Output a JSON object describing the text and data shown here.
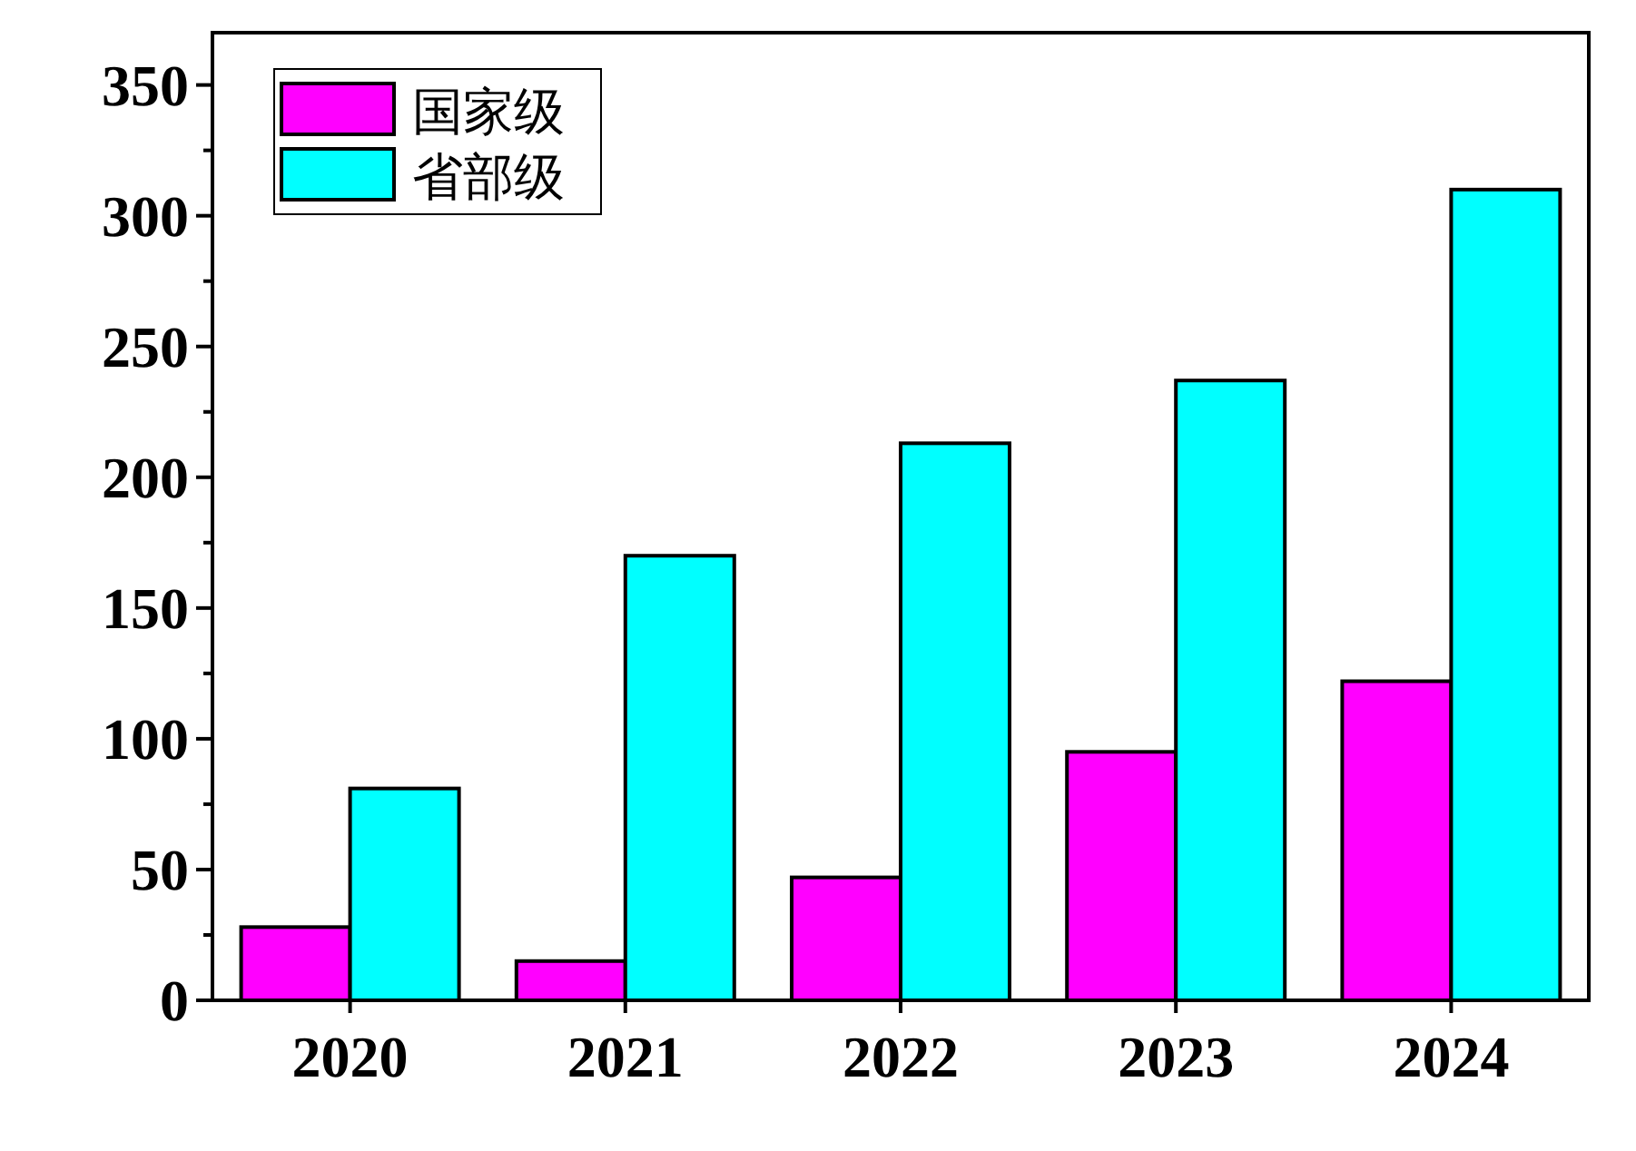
{
  "chart_data": {
    "type": "bar",
    "categories": [
      "2020",
      "2021",
      "2022",
      "2023",
      "2024"
    ],
    "series": [
      {
        "name": "国家级",
        "color": "#ff00ff",
        "values": [
          28,
          15,
          47,
          95,
          122
        ]
      },
      {
        "name": "省部级",
        "color": "#00ffff",
        "values": [
          81,
          170,
          213,
          237,
          310
        ]
      }
    ],
    "ylim": [
      0,
      370
    ],
    "yticks": [
      0,
      {
        "value": 25,
        "label": null
      },
      50,
      {
        "value": 75,
        "label": null
      },
      100,
      {
        "value": 125,
        "label": null
      },
      150,
      {
        "value": 175,
        "label": null
      },
      200,
      {
        "value": 225,
        "label": null
      },
      250,
      {
        "value": 275,
        "label": null
      },
      300,
      {
        "value": 325,
        "label": null
      },
      350
    ],
    "legend": "top left",
    "grid": false
  }
}
